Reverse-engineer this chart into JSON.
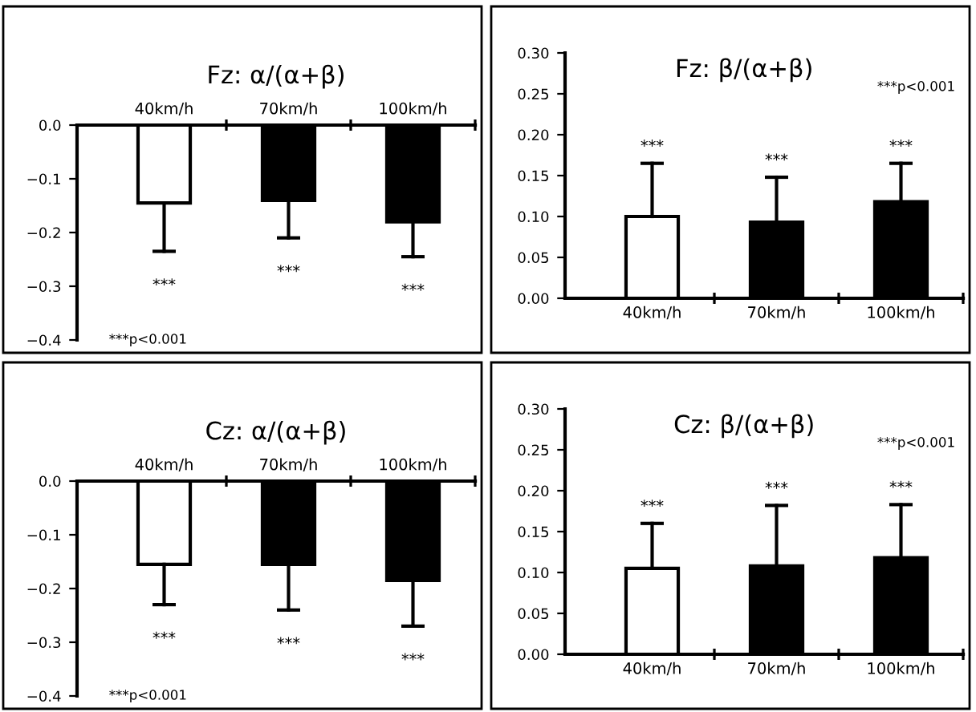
{
  "chart_data": [
    {
      "type": "bar",
      "title": "Fz: α/(α+β)",
      "categories": [
        "40km/h",
        "70km/h",
        "100km/h"
      ],
      "values": [
        -0.145,
        -0.14,
        -0.18
      ],
      "colors": [
        "#ffffff",
        "#000000",
        "#000000"
      ],
      "errors": [
        [
          -0.235,
          -0.145
        ],
        [
          -0.21,
          -0.14
        ],
        [
          -0.245,
          -0.18
        ]
      ],
      "ylim": [
        -0.4,
        0
      ],
      "yticks": [
        {
          "value": -0.4,
          "label": "−0.4"
        },
        {
          "value": -0.3,
          "label": "−0.3"
        },
        {
          "value": -0.2,
          "label": "−0.2"
        },
        {
          "value": -0.1,
          "label": "−0.1"
        },
        {
          "value": 0,
          "label": "0.0"
        }
      ],
      "annotations": [
        "***",
        "***",
        "***",
        "***p<0.001"
      ],
      "grid": false,
      "legend": false
    },
    {
      "type": "bar",
      "title": "Fz: β/(α+β)",
      "categories": [
        "40km/h",
        "70km/h",
        "100km/h"
      ],
      "values": [
        0.1,
        0.093,
        0.118
      ],
      "colors": [
        "#ffffff",
        "#000000",
        "#000000"
      ],
      "errors": [
        [
          0.1,
          0.165
        ],
        [
          0.093,
          0.148
        ],
        [
          0.118,
          0.165
        ]
      ],
      "ylim": [
        0,
        0.3
      ],
      "yticks": [
        {
          "value": 0,
          "label": "0.00"
        },
        {
          "value": 0.05,
          "label": "0.05"
        },
        {
          "value": 0.1,
          "label": "0.10"
        },
        {
          "value": 0.15,
          "label": "0.15"
        },
        {
          "value": 0.2,
          "label": "0.20"
        },
        {
          "value": 0.25,
          "label": "0.25"
        },
        {
          "value": 0.3,
          "label": "0.30"
        }
      ],
      "annotations": [
        "***",
        "***",
        "***",
        "***p<0.001"
      ],
      "grid": false,
      "legend": false
    },
    {
      "type": "bar",
      "title": "Cz: α/(α+β)",
      "categories": [
        "40km/h",
        "70km/h",
        "100km/h"
      ],
      "values": [
        -0.155,
        -0.155,
        -0.185
      ],
      "colors": [
        "#ffffff",
        "#000000",
        "#000000"
      ],
      "errors": [
        [
          -0.23,
          -0.155
        ],
        [
          -0.24,
          -0.155
        ],
        [
          -0.27,
          -0.185
        ]
      ],
      "ylim": [
        -0.4,
        0
      ],
      "yticks": [
        {
          "value": -0.4,
          "label": "−0.4"
        },
        {
          "value": -0.3,
          "label": "−0.3"
        },
        {
          "value": -0.2,
          "label": "−0.2"
        },
        {
          "value": -0.1,
          "label": "−0.1"
        },
        {
          "value": 0,
          "label": "0.0"
        }
      ],
      "annotations": [
        "***",
        "***",
        "***",
        "***p<0.001"
      ],
      "grid": false,
      "legend": false
    },
    {
      "type": "bar",
      "title": "Cz: β/(α+β)",
      "categories": [
        "40km/h",
        "70km/h",
        "100km/h"
      ],
      "values": [
        0.105,
        0.108,
        0.118
      ],
      "colors": [
        "#ffffff",
        "#000000",
        "#000000"
      ],
      "errors": [
        [
          0.105,
          0.16
        ],
        [
          0.108,
          0.182
        ],
        [
          0.118,
          0.183
        ]
      ],
      "ylim": [
        0,
        0.3
      ],
      "yticks": [
        {
          "value": 0,
          "label": "0.00"
        },
        {
          "value": 0.05,
          "label": "0.05"
        },
        {
          "value": 0.1,
          "label": "0.10"
        },
        {
          "value": 0.15,
          "label": "0.15"
        },
        {
          "value": 0.2,
          "label": "0.20"
        },
        {
          "value": 0.25,
          "label": "0.25"
        },
        {
          "value": 0.3,
          "label": "0.30"
        }
      ],
      "annotations": [
        "***",
        "***",
        "***",
        "***p<0.001"
      ],
      "grid": false,
      "legend": false
    }
  ]
}
